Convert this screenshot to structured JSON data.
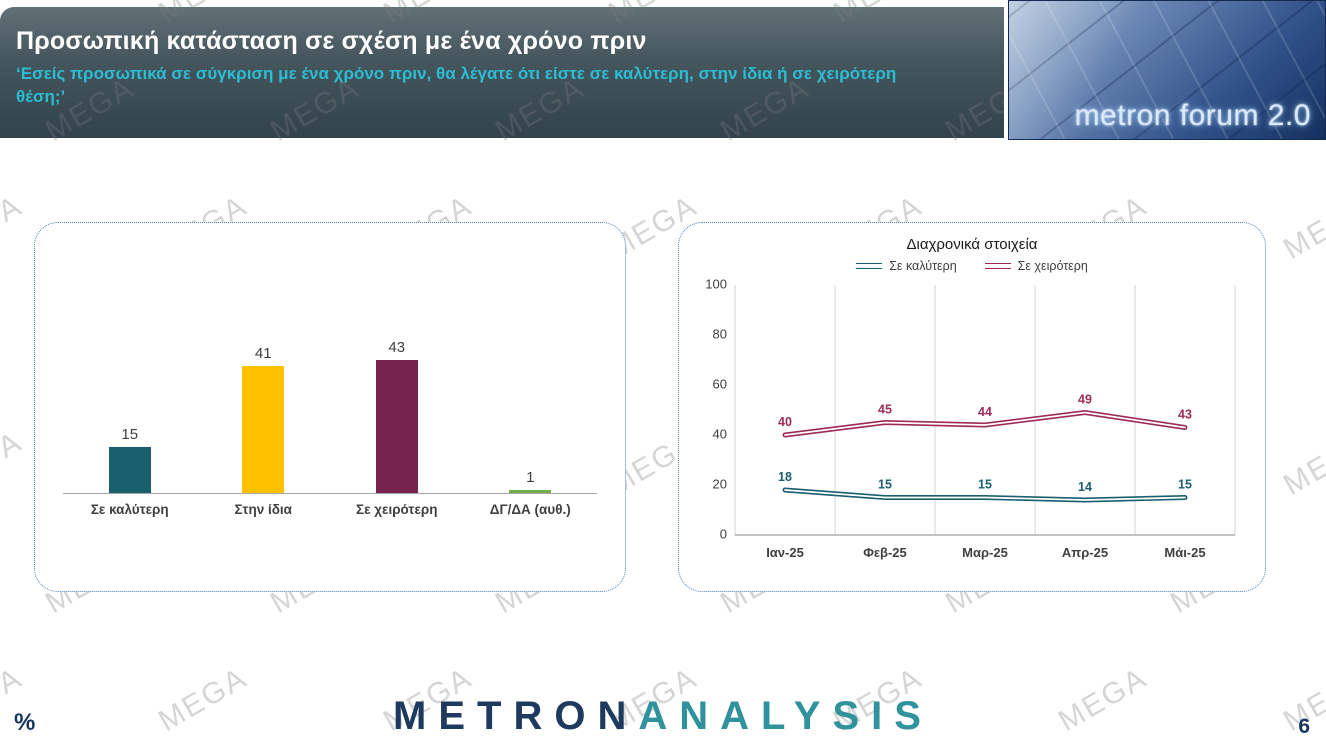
{
  "watermark_text": "MEGA",
  "header": {
    "title": "Προσωπική κατάσταση σε σχέση με ένα χρόνο πριν",
    "subtitle": "‘Εσείς προσωπικά σε σύγκριση με ένα χρόνο πριν, θα λέγατε ότι είστε σε καλύτερη, στην ίδια ή σε χειρότερη θέση;’",
    "logo_text": "metron forum 2.0"
  },
  "colors": {
    "header_accent": "#2cbcd4",
    "better": "#1a5f6e",
    "same": "#ffc000",
    "worse_bar": "#76234e",
    "worse_line": "#9e2b57",
    "dk_da": "#70ad47",
    "brand_navy": "#1e3a5f",
    "brand_teal": "#2f929c"
  },
  "chart_data": [
    {
      "type": "bar",
      "title": "",
      "categories": [
        "Σε καλύτερη",
        "Στην ίδια",
        "Σε χειρότερη",
        "ΔΓ/ΔΑ (αυθ.)"
      ],
      "values": [
        15,
        41,
        43,
        1
      ],
      "bar_colors": [
        "#1a5f6e",
        "#ffc000",
        "#76234e",
        "#70ad47"
      ],
      "ylim": [
        0,
        50
      ],
      "data_labels": true,
      "grid": false
    },
    {
      "type": "line",
      "title": "Διαχρονικά στοιχεία",
      "categories": [
        "Ιαν-25",
        "Φεβ-25",
        "Μαρ-25",
        "Απρ-25",
        "Μάι-25"
      ],
      "series": [
        {
          "name": "Σε καλύτερη",
          "values": [
            18,
            15,
            15,
            14,
            15
          ],
          "color": "#1a5f6e"
        },
        {
          "name": "Σε χειρότερη",
          "values": [
            40,
            45,
            44,
            49,
            43
          ],
          "color": "#9e2b57"
        }
      ],
      "ylim": [
        0,
        100
      ],
      "yticks": [
        0,
        20,
        40,
        60,
        80,
        100
      ],
      "legend_position": "top",
      "grid": "vertical",
      "data_labels": true
    }
  ],
  "footer": {
    "brand_primary": "METRON",
    "brand_secondary": "ANALYSIS",
    "unit_label": "%",
    "page_number": "6"
  }
}
